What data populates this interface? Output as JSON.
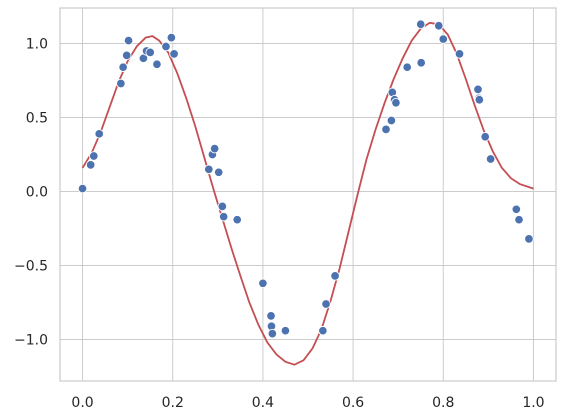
{
  "colors": {
    "background": "#ffffff",
    "grid": "#cccccc",
    "spine": "#cccccc",
    "points": "#4c72b0",
    "point_edge": "#ffffff",
    "curve": "#c44e52",
    "text": "#262626"
  },
  "chart_data": {
    "type": "scatter",
    "title": "",
    "xlabel": "",
    "ylabel": "",
    "xlim": [
      -0.05,
      1.05
    ],
    "ylim": [
      -1.28,
      1.24
    ],
    "grid": true,
    "legend": "none",
    "x_ticks": [
      0.0,
      0.2,
      0.4,
      0.6,
      0.8,
      1.0
    ],
    "x_tick_labels": [
      "0.0",
      "0.2",
      "0.4",
      "0.6",
      "0.8",
      "1.0"
    ],
    "y_ticks": [
      -1.0,
      -0.5,
      0.0,
      0.5,
      1.0
    ],
    "y_tick_labels": [
      "−1.0",
      "−0.5",
      "0.0",
      "0.5",
      "1.0"
    ],
    "series": [
      {
        "kind": "scatter",
        "points": [
          [
            0.0,
            0.02
          ],
          [
            0.018,
            0.18
          ],
          [
            0.025,
            0.24
          ],
          [
            0.037,
            0.39
          ],
          [
            0.085,
            0.73
          ],
          [
            0.09,
            0.84
          ],
          [
            0.098,
            0.92
          ],
          [
            0.102,
            1.02
          ],
          [
            0.135,
            0.9
          ],
          [
            0.142,
            0.95
          ],
          [
            0.15,
            0.94
          ],
          [
            0.165,
            0.86
          ],
          [
            0.185,
            0.98
          ],
          [
            0.197,
            1.04
          ],
          [
            0.203,
            0.93
          ],
          [
            0.28,
            0.15
          ],
          [
            0.288,
            0.25
          ],
          [
            0.293,
            0.29
          ],
          [
            0.302,
            0.13
          ],
          [
            0.31,
            -0.1
          ],
          [
            0.313,
            -0.17
          ],
          [
            0.343,
            -0.19
          ],
          [
            0.4,
            -0.62
          ],
          [
            0.418,
            -0.84
          ],
          [
            0.419,
            -0.91
          ],
          [
            0.421,
            -0.96
          ],
          [
            0.45,
            -0.94
          ],
          [
            0.533,
            -0.94
          ],
          [
            0.54,
            -0.76
          ],
          [
            0.56,
            -0.57
          ],
          [
            0.673,
            0.42
          ],
          [
            0.685,
            0.48
          ],
          [
            0.687,
            0.67
          ],
          [
            0.692,
            0.62
          ],
          [
            0.695,
            0.6
          ],
          [
            0.72,
            0.84
          ],
          [
            0.75,
            1.13
          ],
          [
            0.751,
            0.87
          ],
          [
            0.79,
            1.12
          ],
          [
            0.8,
            1.03
          ],
          [
            0.836,
            0.93
          ],
          [
            0.877,
            0.69
          ],
          [
            0.879,
            0.63
          ],
          [
            0.88,
            0.62
          ],
          [
            0.893,
            0.37
          ],
          [
            0.905,
            0.22
          ],
          [
            0.962,
            -0.12
          ],
          [
            0.968,
            -0.19
          ],
          [
            0.99,
            -0.32
          ]
        ]
      },
      {
        "kind": "line",
        "points": [
          [
            0.0,
            0.16
          ],
          [
            0.02,
            0.26
          ],
          [
            0.04,
            0.4
          ],
          [
            0.06,
            0.57
          ],
          [
            0.08,
            0.74
          ],
          [
            0.1,
            0.88
          ],
          [
            0.12,
            0.98
          ],
          [
            0.14,
            1.04
          ],
          [
            0.155,
            1.05
          ],
          [
            0.17,
            1.02
          ],
          [
            0.19,
            0.94
          ],
          [
            0.21,
            0.8
          ],
          [
            0.23,
            0.63
          ],
          [
            0.25,
            0.44
          ],
          [
            0.27,
            0.23
          ],
          [
            0.29,
            0.02
          ],
          [
            0.31,
            -0.18
          ],
          [
            0.33,
            -0.38
          ],
          [
            0.35,
            -0.57
          ],
          [
            0.37,
            -0.75
          ],
          [
            0.39,
            -0.9
          ],
          [
            0.41,
            -1.02
          ],
          [
            0.43,
            -1.1
          ],
          [
            0.45,
            -1.15
          ],
          [
            0.47,
            -1.17
          ],
          [
            0.49,
            -1.14
          ],
          [
            0.51,
            -1.06
          ],
          [
            0.53,
            -0.93
          ],
          [
            0.55,
            -0.74
          ],
          [
            0.57,
            -0.52
          ],
          [
            0.59,
            -0.27
          ],
          [
            0.61,
            -0.02
          ],
          [
            0.63,
            0.22
          ],
          [
            0.65,
            0.42
          ],
          [
            0.67,
            0.6
          ],
          [
            0.69,
            0.76
          ],
          [
            0.71,
            0.9
          ],
          [
            0.73,
            1.02
          ],
          [
            0.75,
            1.1
          ],
          [
            0.77,
            1.14
          ],
          [
            0.79,
            1.13
          ],
          [
            0.81,
            1.06
          ],
          [
            0.83,
            0.93
          ],
          [
            0.85,
            0.76
          ],
          [
            0.87,
            0.58
          ],
          [
            0.89,
            0.41
          ],
          [
            0.91,
            0.27
          ],
          [
            0.93,
            0.16
          ],
          [
            0.95,
            0.09
          ],
          [
            0.97,
            0.05
          ],
          [
            1.0,
            0.02
          ]
        ]
      }
    ]
  }
}
